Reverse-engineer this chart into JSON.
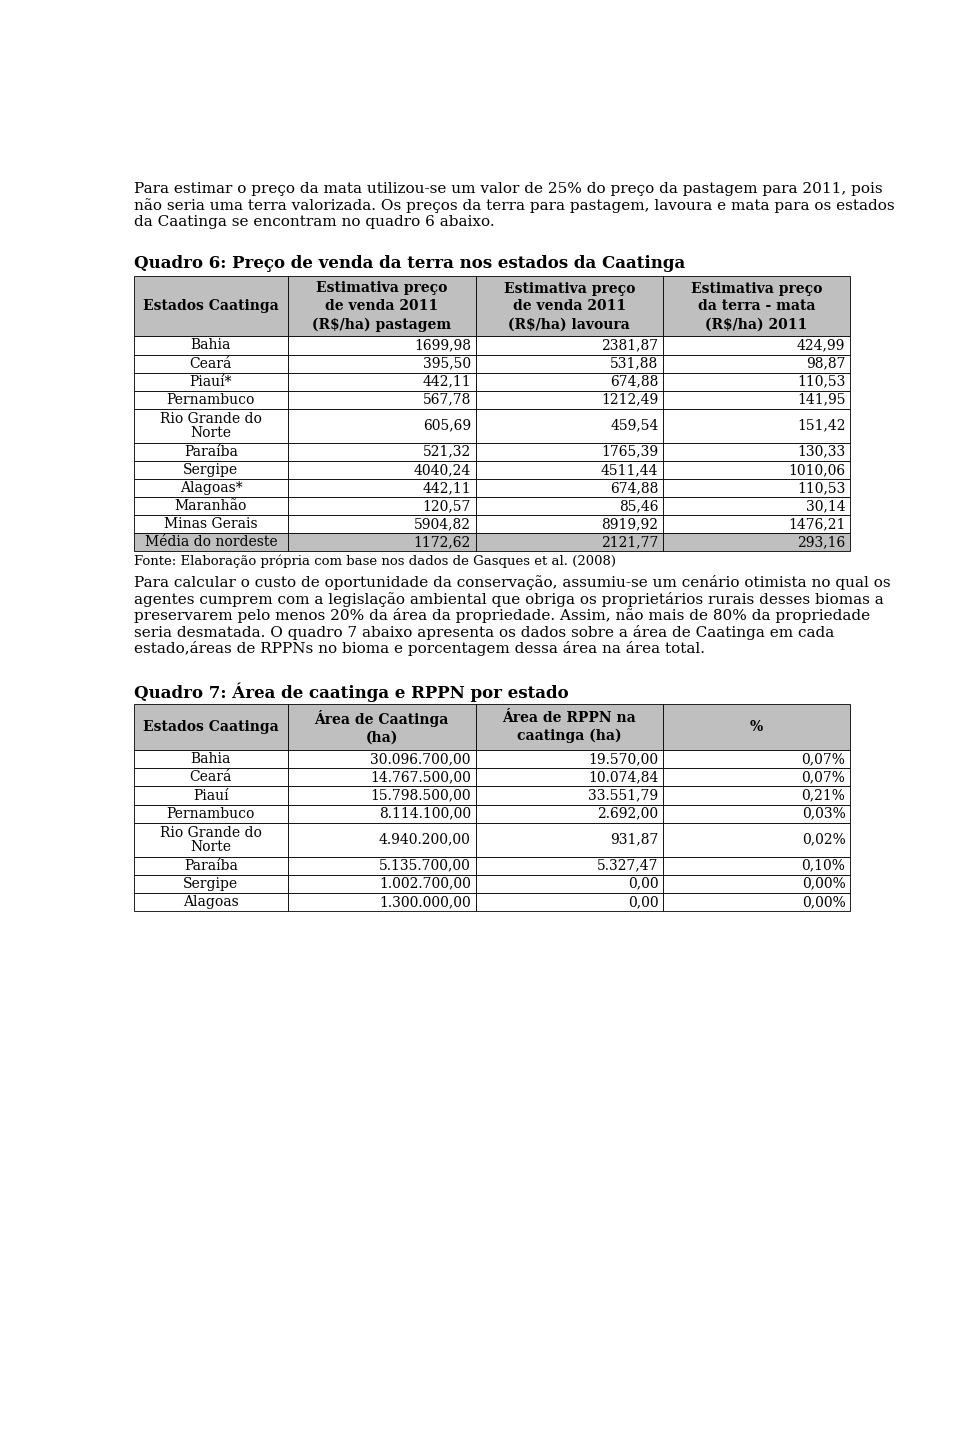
{
  "intro_lines": [
    "Para estimar o preço da mata utilizou-se um valor de 25% do preço da pastagem para 2011, pois",
    "não seria uma terra valorizada. Os preços da terra para pastagem, lavoura e mata para os estados",
    "da Caatinga se encontram no quadro 6 abaixo."
  ],
  "table1_title": "Quadro 6: Preço de venda da terra nos estados da Caatinga",
  "table1_headers": [
    "Estados Caatinga",
    "Estimativa preço\nde venda 2011\n(R$/ha) pastagem",
    "Estimativa preço\nde venda 2011\n(R$/ha) lavoura",
    "Estimativa preço\nda terra - mata\n(R$/ha) 2011"
  ],
  "table1_rows": [
    [
      "Bahia",
      "1699,98",
      "2381,87",
      "424,99"
    ],
    [
      "Ceará",
      "395,50",
      "531,88",
      "98,87"
    ],
    [
      "Piauí*",
      "442,11",
      "674,88",
      "110,53"
    ],
    [
      "Pernambuco",
      "567,78",
      "1212,49",
      "141,95"
    ],
    [
      "Rio Grande do\nNorte",
      "605,69",
      "459,54",
      "151,42"
    ],
    [
      "Paraíba",
      "521,32",
      "1765,39",
      "130,33"
    ],
    [
      "Sergipe",
      "4040,24",
      "4511,44",
      "1010,06"
    ],
    [
      "Alagoas*",
      "442,11",
      "674,88",
      "110,53"
    ],
    [
      "Maranhão",
      "120,57",
      "85,46",
      "30,14"
    ],
    [
      "Minas Gerais",
      "5904,82",
      "8919,92",
      "1476,21"
    ]
  ],
  "table1_footer": [
    "Média do nordeste",
    "1172,62",
    "2121,77",
    "293,16"
  ],
  "table1_source": "Fonte: Elaboração própria com base nos dados de Gasques et al. (2008)",
  "middle_lines": [
    "Para calcular o custo de oportunidade da conservação, assumiu-se um cenário otimista no qual os",
    "agentes cumprem com a legislação ambiental que obriga os proprietários rurais desses biomas a",
    "preservarem pelo menos 20% da área da propriedade. Assim, não mais de 80% da propriedade",
    "seria desmatada. O quadro 7 abaixo apresenta os dados sobre a área de Caatinga em cada",
    "estado,áreas de RPPNs no bioma e porcentagem dessa área na área total."
  ],
  "table2_title": "Quadro 7: Área de caatinga e RPPN por estado",
  "table2_headers": [
    "Estados Caatinga",
    "Área de Caatinga\n(ha)",
    "Área de RPPN na\ncaatinga (ha)",
    "%"
  ],
  "table2_rows": [
    [
      "Bahia",
      "30.096.700,00",
      "19.570,00",
      "0,07%"
    ],
    [
      "Ceará",
      "14.767.500,00",
      "10.074,84",
      "0,07%"
    ],
    [
      "Piauí",
      "15.798.500,00",
      "33.551,79",
      "0,21%"
    ],
    [
      "Pernambuco",
      "8.114.100,00",
      "2.692,00",
      "0,03%"
    ],
    [
      "Rio Grande do\nNorte",
      "4.940.200,00",
      "931,87",
      "0,02%"
    ],
    [
      "Paraíba",
      "5.135.700,00",
      "5.327,47",
      "0,10%"
    ],
    [
      "Sergipe",
      "1.002.700,00",
      "0,00",
      "0,00%"
    ],
    [
      "Alagoas",
      "1.300.000,00",
      "0,00",
      "0,00%"
    ]
  ],
  "header_bg": "#BFBFBF",
  "body_bg": "#FFFFFF",
  "border_color": "#000000",
  "text_color": "#000000"
}
